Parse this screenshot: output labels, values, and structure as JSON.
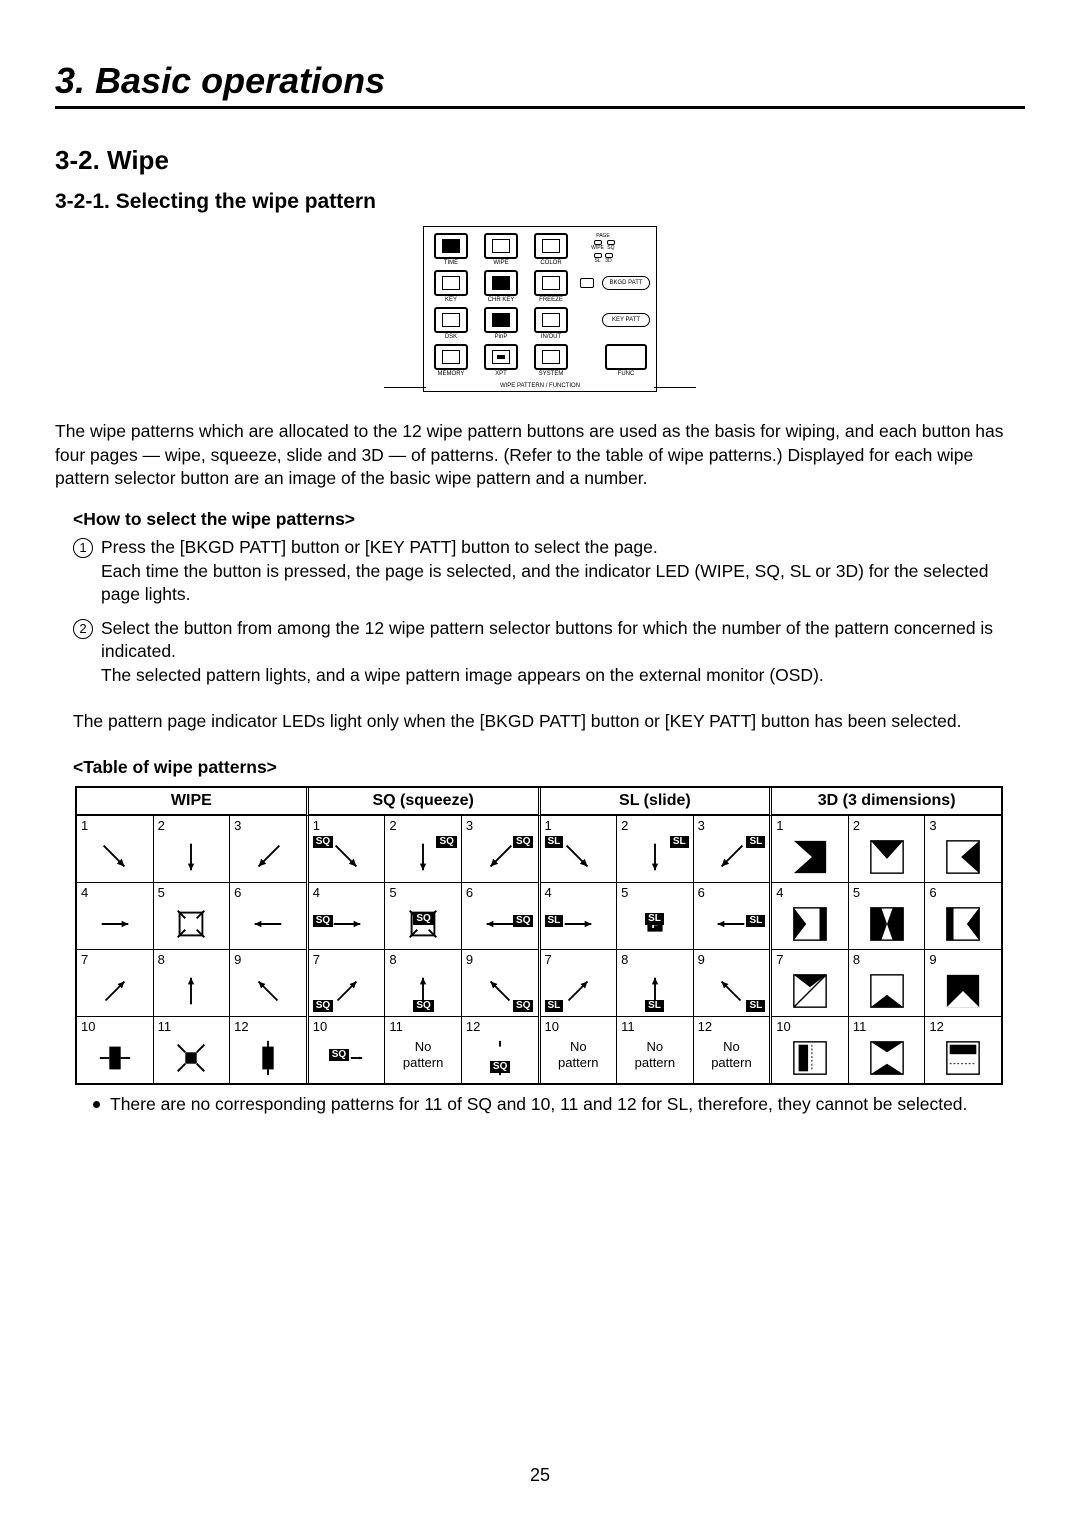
{
  "chapter": "3. Basic operations",
  "section": "3-2. Wipe",
  "subsection": "3-2-1. Selecting the wipe pattern",
  "panel": {
    "leds_title": "PAGE",
    "leds": [
      [
        "WIPE",
        "SQ"
      ],
      [
        "SL",
        "3D"
      ]
    ],
    "rows": [
      [
        "TIME",
        "WIPE",
        "COLOR"
      ],
      [
        "KEY",
        "CHR KEY",
        "FREEZE"
      ],
      [
        "DSK",
        "PinP",
        "IN/OUT"
      ],
      [
        "MEMORY",
        "XPT",
        "SYSTEM"
      ]
    ],
    "extra_btns": [
      "BKGD PATT",
      "KEY PATT"
    ],
    "func_label": "FUNC",
    "bottom_label": "WIPE PATTERN / FUNCTION"
  },
  "intro": "The wipe patterns which are allocated to the 12 wipe pattern buttons are used as the basis for wiping, and each button has four pages — wipe, squeeze, slide and 3D — of patterns. (Refer to the table of wipe patterns.) Displayed for each wipe pattern selector button are an image of the basic wipe pattern and a number.",
  "howto_title": "<How to select the wipe patterns>",
  "steps": [
    {
      "n": "1",
      "text": "Press the [BKGD PATT] button or [KEY PATT] button to select the page.\nEach time the button is pressed, the page is selected, and the indicator LED (WIPE, SQ, SL or 3D) for the selected page lights."
    },
    {
      "n": "2",
      "text": "Select the button from among the 12 wipe pattern selector buttons for which the number of the pattern concerned is indicated.\nThe selected pattern lights, and a wipe pattern image appears on the external monitor (OSD)."
    }
  ],
  "note": "The pattern page indicator LEDs light only when the [BKGD PATT] button or [KEY PATT] button has been selected.",
  "table_title": "<Table of wipe patterns>",
  "table": {
    "headers": [
      "WIPE",
      "SQ (squeeze)",
      "SL (slide)",
      "3D (3 dimensions)"
    ],
    "badges": [
      "",
      "SQ",
      "SL",
      ""
    ],
    "groups": [
      {
        "rows": [
          [
            "1",
            "2",
            "3"
          ],
          [
            "4",
            "5",
            "6"
          ],
          [
            "7",
            "8",
            "9"
          ],
          [
            "10",
            "11",
            "12"
          ]
        ],
        "nopat": []
      },
      {
        "rows": [
          [
            "1",
            "2",
            "3"
          ],
          [
            "4",
            "5",
            "6"
          ],
          [
            "7",
            "8",
            "9"
          ],
          [
            "10",
            "11",
            "12"
          ]
        ],
        "nopat": [
          "11"
        ]
      },
      {
        "rows": [
          [
            "1",
            "2",
            "3"
          ],
          [
            "4",
            "5",
            "6"
          ],
          [
            "7",
            "8",
            "9"
          ],
          [
            "10",
            "11",
            "12"
          ]
        ],
        "nopat": [
          "10",
          "11",
          "12"
        ]
      },
      {
        "rows": [
          [
            "1",
            "2",
            "3"
          ],
          [
            "4",
            "5",
            "6"
          ],
          [
            "7",
            "8",
            "9"
          ],
          [
            "10",
            "11",
            "12"
          ]
        ],
        "nopat": []
      }
    ]
  },
  "bullet_note": "There are no corresponding patterns for 11 of SQ and 10, 11 and 12 for SL, therefore, they cannot be selected.",
  "page_number": "25",
  "no_pattern_text": "No\npattern"
}
